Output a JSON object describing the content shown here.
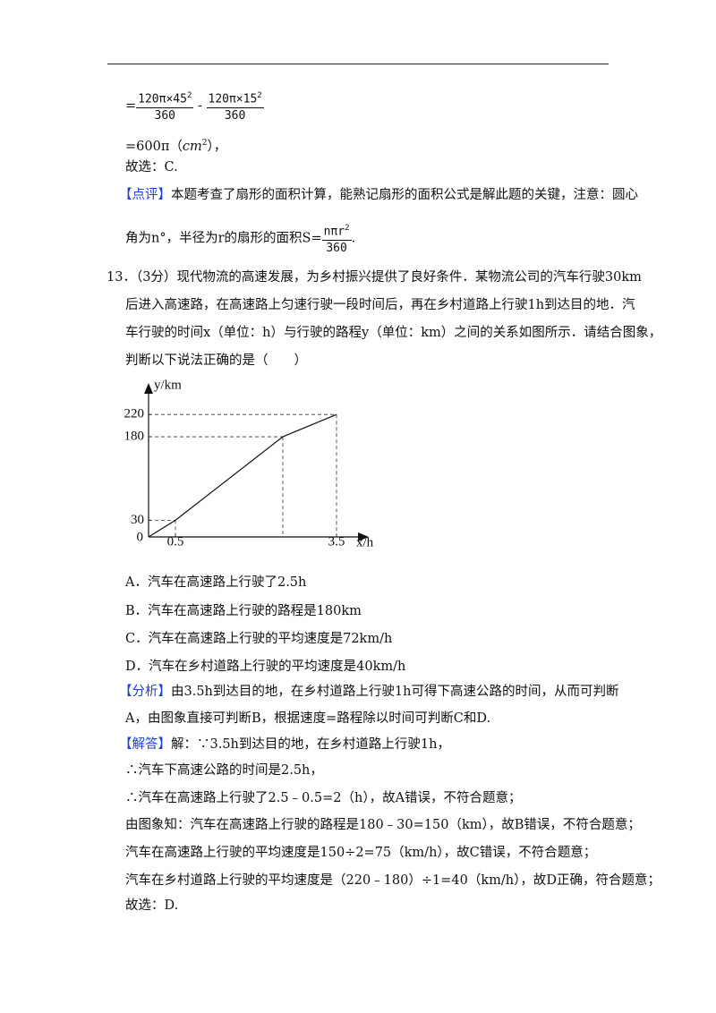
{
  "solution_prev": {
    "formula": {
      "eq": "=",
      "frac1": {
        "num": "120π×45",
        "exp": "2",
        "den": "360"
      },
      "op": "-",
      "frac2": {
        "num": "120π×15",
        "exp": "2",
        "den": "360"
      }
    },
    "result": {
      "pre": "=600π（",
      "unit": "cm",
      "exp": "2",
      "post": "），"
    },
    "choice": "故选：C.",
    "comment": {
      "tag": "【点评】",
      "line1": "本题考查了扇形的面积计算，能熟记扇形的面积公式是解此题的关键，注意：圆心",
      "line2": "角为n°，半径为r的扇形的面积S=",
      "frac": {
        "num": "nπr",
        "exp": "2",
        "den": "360"
      },
      "end": "."
    }
  },
  "question": {
    "number": "13．（3分）",
    "lines": [
      "现代物流的高速发展，为乡村振兴提供了良好条件．某物流公司的汽车行驶30km",
      "后进入高速路，在高速路上匀速行驶一段时间后，再在乡村道路上行驶1h到达目的地．汽",
      "车行驶的时间x（单位：h）与行驶的路程y（单位：km）之间的关系如图所示．请结合图象，",
      "判断以下说法正确的是（　　）"
    ],
    "figure": {
      "type": "line",
      "x_label": "x/h",
      "y_label": "y/km",
      "x": [
        0,
        0.5,
        2.5,
        3.5
      ],
      "y": [
        0,
        30,
        180,
        220
      ],
      "xlim": [
        0,
        4
      ],
      "ylim": [
        0,
        275
      ],
      "xticks": [
        0.5,
        3.5
      ],
      "yticks": [
        0,
        30,
        180,
        220
      ]
    },
    "options": [
      "A．汽车在高速路上行驶了2.5h",
      "B．汽车在高速路上行驶的路程是180km",
      "C．汽车在高速路上行驶的平均速度是72km/h",
      "D．汽车在乡村道路上行驶的平均速度是40km/h"
    ]
  },
  "analysis": {
    "tag": "【分析】",
    "lines": [
      "由3.5h到达目的地，在乡村道路上行驶1h可得下高速公路的时间，从而可判断",
      "A，由图象直接可判断B，根据速度=路程除以时间可判断C和D."
    ]
  },
  "answer": {
    "tag": "【解答】",
    "lines": [
      "解：∵3.5h到达目的地，在乡村道路上行驶1h，",
      "∴汽车下高速公路的时间是2.5h，",
      "∴汽车在高速路上行驶了2.5﹣0.5=2（h），故A错误，不符合题意；",
      "由图象知：汽车在高速路上行驶的路程是180﹣30=150（km），故B错误，不符合题意；",
      "汽车在高速路上行驶的平均速度是150÷2=75（km/h），故C错误，不符合题意；",
      "汽车在乡村道路上行驶的平均速度是（220﹣180）÷1=40（km/h），故D正确，符合题意；",
      "故选：D."
    ]
  }
}
